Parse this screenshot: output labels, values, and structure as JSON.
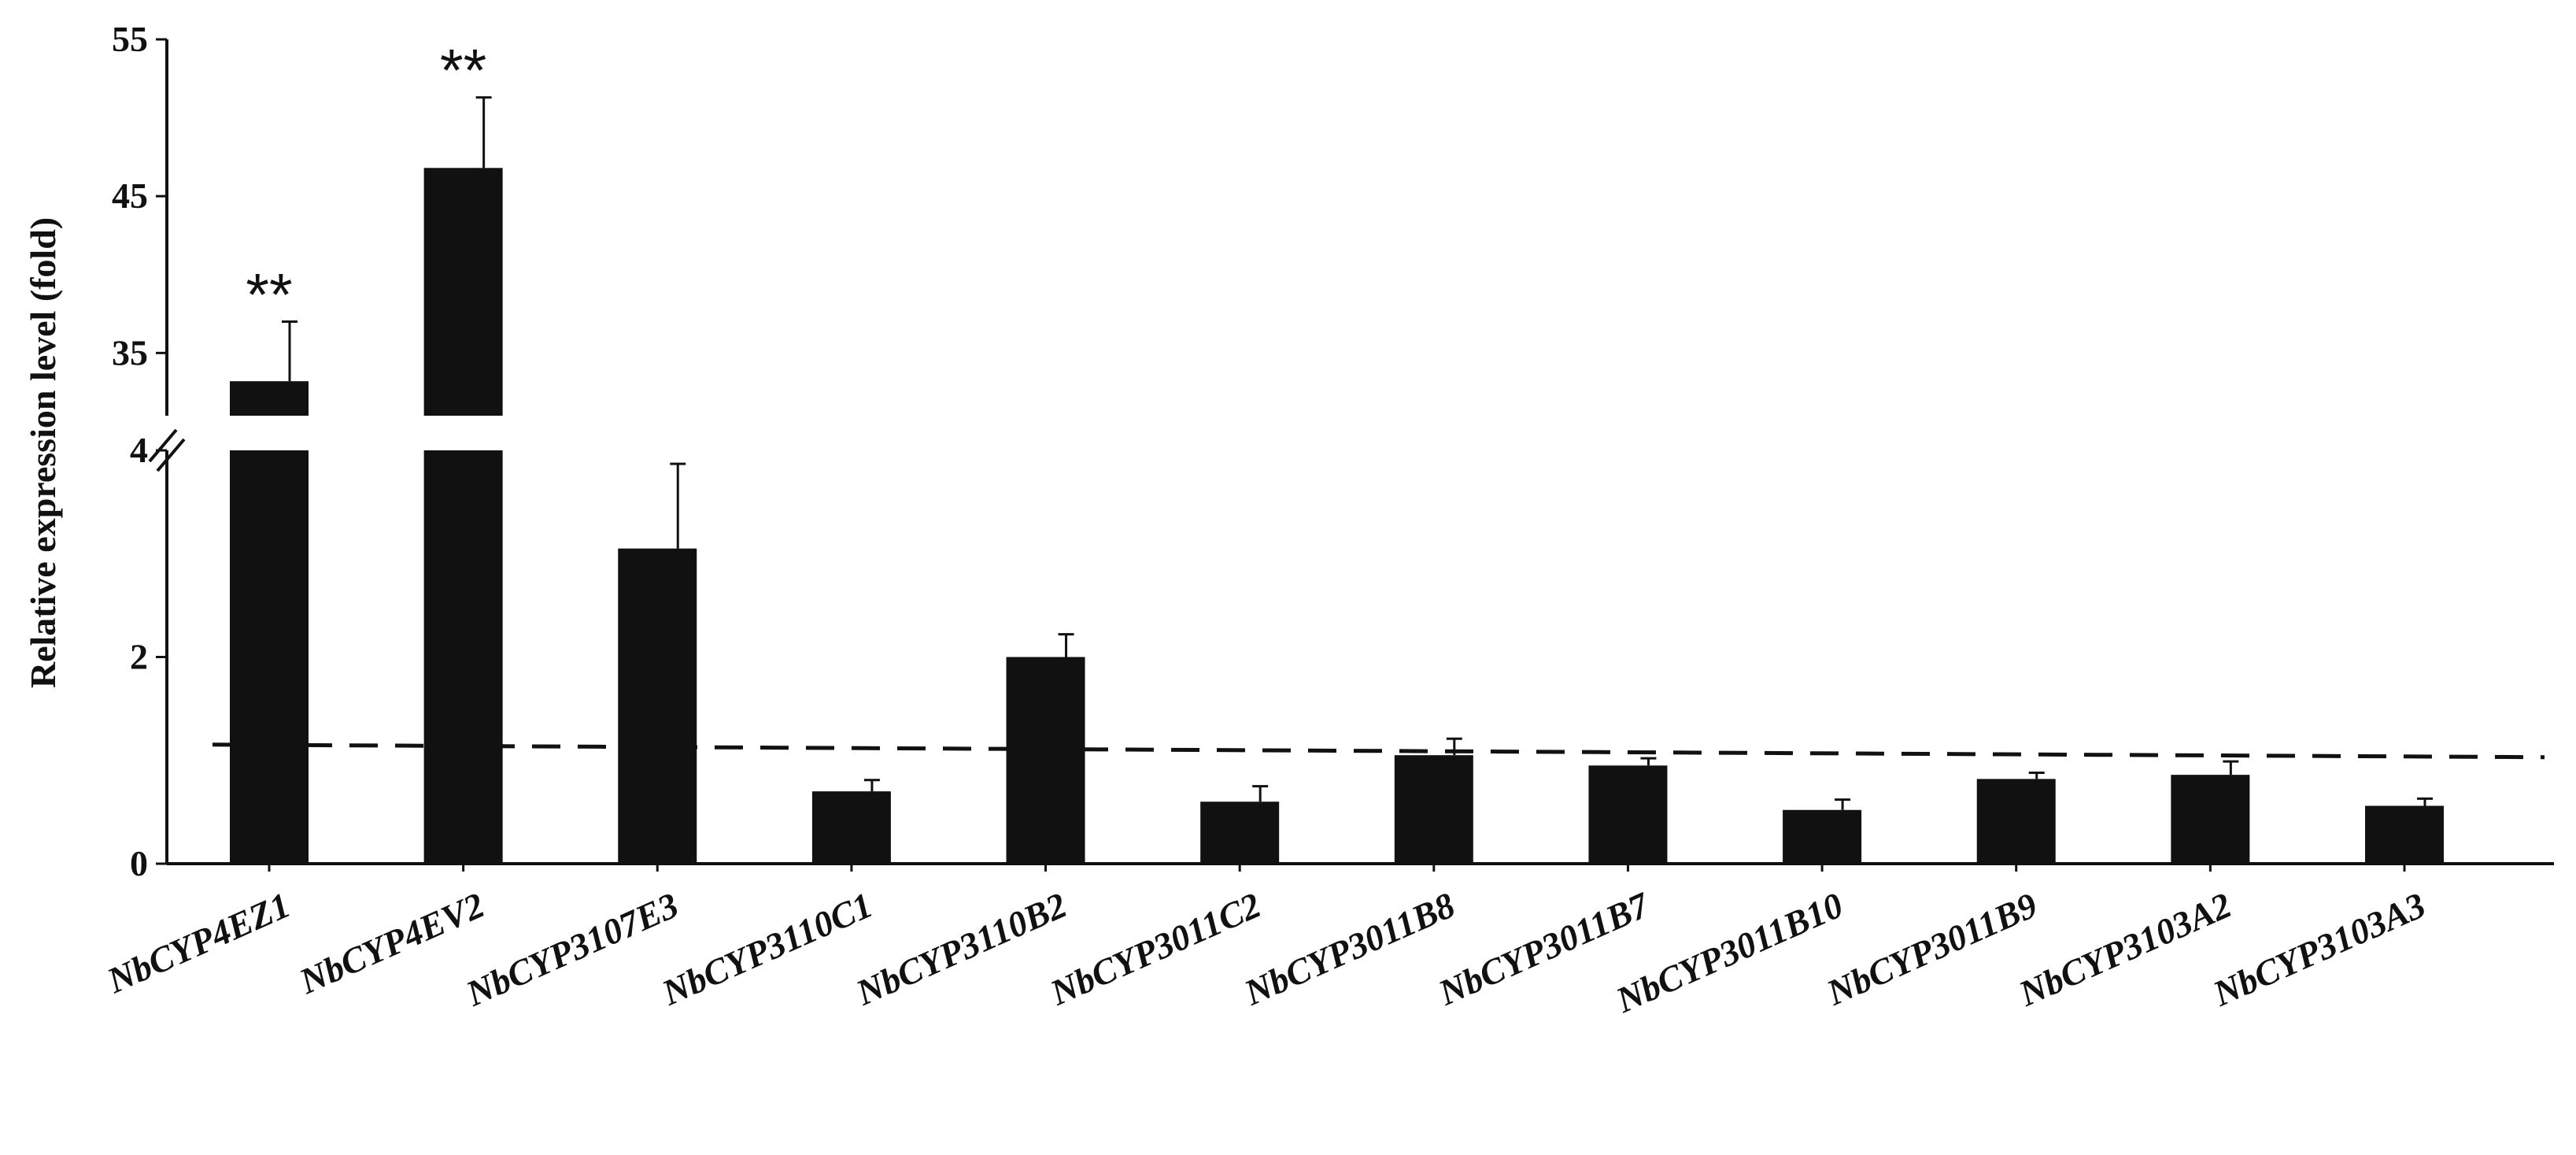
{
  "chart_data": {
    "type": "bar",
    "title": "",
    "xlabel": "",
    "ylabel": "Relative expression level (fold)",
    "categories": [
      "NbCYP4EZ1",
      "NbCYP4EV2",
      "NbCYP3107E3",
      "NbCYP3110C1",
      "NbCYP3110B2",
      "NbCYP3011C2",
      "NbCYP3011B8",
      "NbCYP3011B7",
      "NbCYP3011B10",
      "NbCYP3011B9",
      "NbCYP3103A2",
      "NbCYP3103A3"
    ],
    "values": [
      33.2,
      46.8,
      3.05,
      0.7,
      2.0,
      0.6,
      1.05,
      0.95,
      0.52,
      0.82,
      0.86,
      0.56
    ],
    "error": [
      3.8,
      4.5,
      0.82,
      0.11,
      0.22,
      0.15,
      0.16,
      0.07,
      0.1,
      0.06,
      0.13,
      0.07
    ],
    "significance": [
      "**",
      "**",
      "",
      "",
      "",
      "",
      "",
      "",
      "",
      "",
      "",
      ""
    ],
    "y_axis": {
      "type": "broken",
      "lower_range": [
        0,
        4
      ],
      "lower_ticks": [
        "0",
        "2",
        "4"
      ],
      "upper_range": [
        31,
        55
      ],
      "upper_ticks": [
        "35",
        "45",
        "55"
      ]
    },
    "reference_line": 1,
    "grid": false,
    "legend": "none",
    "colors": {
      "bar": "#111111",
      "axis": "#111111",
      "reference_line": "#111111",
      "background": "#ffffff"
    }
  }
}
